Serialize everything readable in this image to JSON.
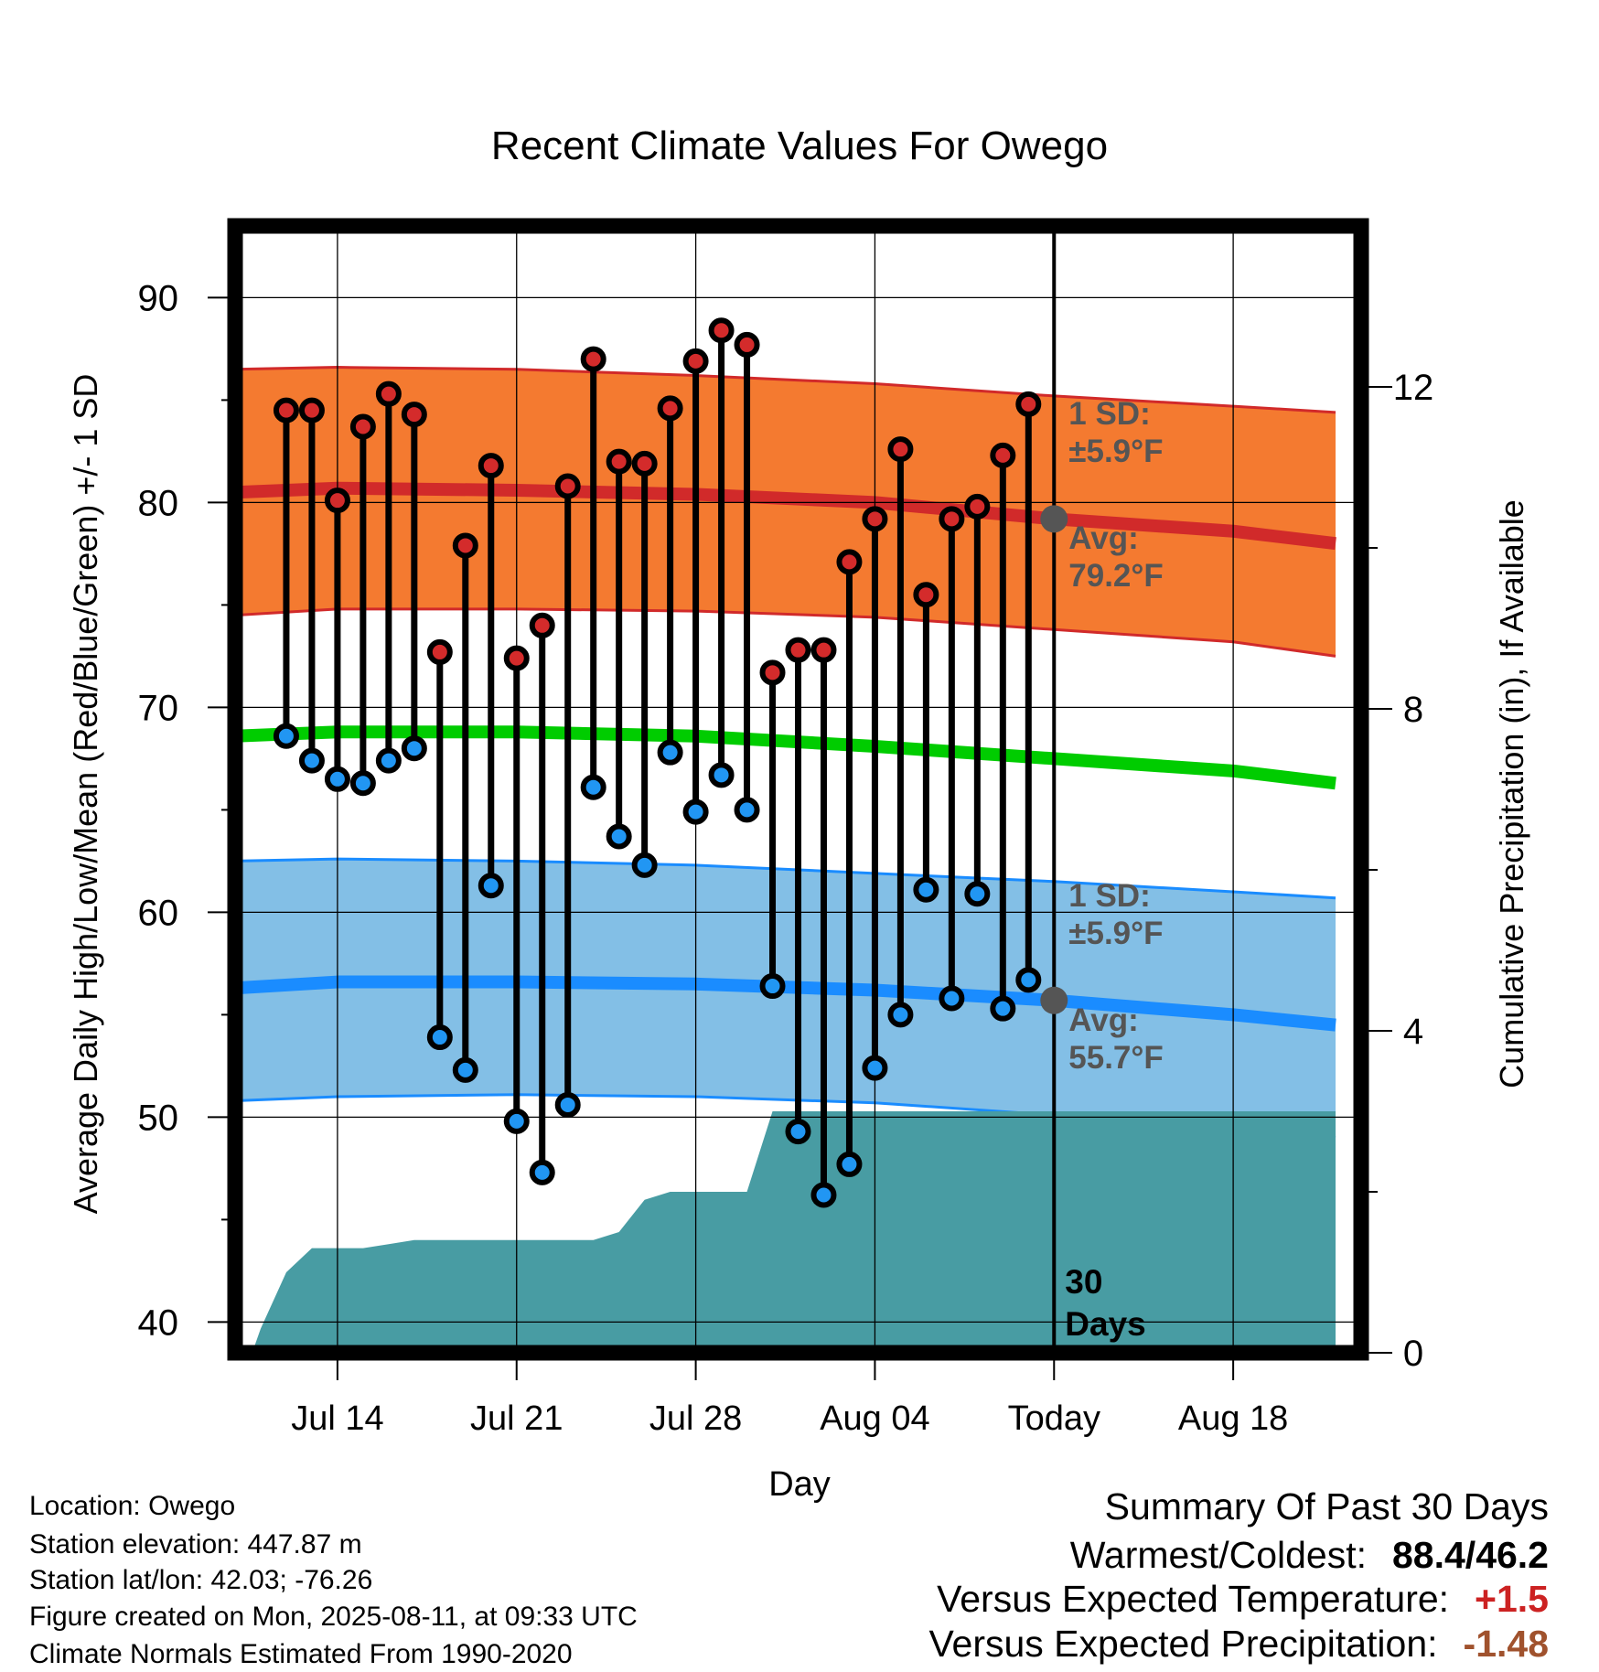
{
  "chart_data": {
    "type": "line",
    "title": "Recent Climate Values For Owego",
    "xlabel": "Day",
    "ylabel_left": "Average Daily High/Low/Mean (Red/Blue/Green) +/- 1 SD",
    "ylabel_right": "Cumulative Precipitation (in), If Available",
    "ylim_left": [
      38.5,
      93.5
    ],
    "yticks_left": [
      40,
      50,
      60,
      70,
      80,
      90
    ],
    "ylim_right": [
      0,
      14
    ],
    "yticks_right": [
      0,
      4,
      8,
      12
    ],
    "x_range": [
      "2025-07-10",
      "2025-08-23"
    ],
    "x_ticks": [
      {
        "date": "2025-07-14",
        "label": "Jul 14"
      },
      {
        "date": "2025-07-21",
        "label": "Jul 21"
      },
      {
        "date": "2025-07-28",
        "label": "Jul 28"
      },
      {
        "date": "2025-08-04",
        "label": "Aug 04"
      },
      {
        "date": "2025-08-11",
        "label": "Today"
      },
      {
        "date": "2025-08-18",
        "label": "Aug 18"
      }
    ],
    "today": "2025-08-11",
    "grid": true,
    "normal_high": {
      "x": [
        "2025-07-10",
        "2025-07-14",
        "2025-07-21",
        "2025-07-28",
        "2025-08-04",
        "2025-08-11",
        "2025-08-18",
        "2025-08-22"
      ],
      "mean": [
        80.5,
        80.7,
        80.6,
        80.4,
        80.0,
        79.2,
        78.6,
        78.0
      ],
      "upper": [
        86.5,
        86.6,
        86.5,
        86.2,
        85.8,
        85.2,
        84.7,
        84.4
      ],
      "lower": [
        74.5,
        74.8,
        74.8,
        74.7,
        74.4,
        73.8,
        73.2,
        72.5
      ]
    },
    "normal_mean": {
      "x": [
        "2025-07-10",
        "2025-07-14",
        "2025-07-21",
        "2025-07-28",
        "2025-08-04",
        "2025-08-11",
        "2025-08-18",
        "2025-08-22"
      ],
      "values": [
        68.6,
        68.8,
        68.8,
        68.6,
        68.1,
        67.5,
        66.9,
        66.3
      ]
    },
    "normal_low": {
      "x": [
        "2025-07-10",
        "2025-07-14",
        "2025-07-21",
        "2025-07-28",
        "2025-08-04",
        "2025-08-11",
        "2025-08-18",
        "2025-08-22"
      ],
      "mean": [
        56.3,
        56.6,
        56.6,
        56.5,
        56.2,
        55.7,
        55.0,
        54.5
      ],
      "upper": [
        62.5,
        62.6,
        62.5,
        62.3,
        61.9,
        61.5,
        61.0,
        60.7
      ],
      "lower": [
        50.8,
        51.0,
        51.1,
        51.0,
        50.7,
        50.1,
        49.5,
        49.0
      ]
    },
    "daily": [
      {
        "date": "2025-07-12",
        "high": 84.5,
        "low": 68.6
      },
      {
        "date": "2025-07-13",
        "high": 84.5,
        "low": 67.4
      },
      {
        "date": "2025-07-14",
        "high": 80.1,
        "low": 66.5
      },
      {
        "date": "2025-07-15",
        "high": 83.7,
        "low": 66.3
      },
      {
        "date": "2025-07-16",
        "high": 85.3,
        "low": 67.4
      },
      {
        "date": "2025-07-17",
        "high": 84.3,
        "low": 68.0
      },
      {
        "date": "2025-07-18",
        "high": 72.7,
        "low": 53.9
      },
      {
        "date": "2025-07-19",
        "high": 77.9,
        "low": 52.3
      },
      {
        "date": "2025-07-20",
        "high": 81.8,
        "low": 61.3
      },
      {
        "date": "2025-07-21",
        "high": 72.4,
        "low": 49.8
      },
      {
        "date": "2025-07-22",
        "high": 74.0,
        "low": 47.3
      },
      {
        "date": "2025-07-23",
        "high": 80.8,
        "low": 50.6
      },
      {
        "date": "2025-07-24",
        "high": 87.0,
        "low": 66.1
      },
      {
        "date": "2025-07-25",
        "high": 82.0,
        "low": 63.7
      },
      {
        "date": "2025-07-26",
        "high": 81.9,
        "low": 62.3
      },
      {
        "date": "2025-07-27",
        "high": 84.6,
        "low": 67.8
      },
      {
        "date": "2025-07-28",
        "high": 86.9,
        "low": 64.9
      },
      {
        "date": "2025-07-29",
        "high": 88.4,
        "low": 66.7
      },
      {
        "date": "2025-07-30",
        "high": 87.7,
        "low": 65.0
      },
      {
        "date": "2025-07-31",
        "high": 71.7,
        "low": 56.4
      },
      {
        "date": "2025-08-01",
        "high": 72.8,
        "low": 49.3
      },
      {
        "date": "2025-08-02",
        "high": 72.8,
        "low": 46.2
      },
      {
        "date": "2025-08-03",
        "high": 77.1,
        "low": 47.7
      },
      {
        "date": "2025-08-04",
        "high": 79.2,
        "low": 52.4
      },
      {
        "date": "2025-08-05",
        "high": 82.6,
        "low": 55.0
      },
      {
        "date": "2025-08-06",
        "high": 75.5,
        "low": 61.1
      },
      {
        "date": "2025-08-07",
        "high": 79.2,
        "low": 55.8
      },
      {
        "date": "2025-08-08",
        "high": 79.8,
        "low": 60.9
      },
      {
        "date": "2025-08-09",
        "high": 82.3,
        "low": 55.3
      },
      {
        "date": "2025-08-10",
        "high": 84.8,
        "low": 56.7
      }
    ],
    "precipitation_cumulative": {
      "x": [
        "2025-07-10",
        "2025-07-11",
        "2025-07-12",
        "2025-07-13",
        "2025-07-15",
        "2025-07-16",
        "2025-07-17",
        "2025-07-24",
        "2025-07-25",
        "2025-07-26",
        "2025-07-27",
        "2025-07-30",
        "2025-07-31",
        "2025-08-22"
      ],
      "values": [
        -0.6,
        0.3,
        1.0,
        1.3,
        1.3,
        1.35,
        1.4,
        1.4,
        1.5,
        1.9,
        2.0,
        2.0,
        3.0,
        3.0
      ]
    },
    "annotations": {
      "high_sd": "1 SD:\n±5.9°F",
      "high_avg": "Avg:\n79.2°F",
      "low_sd": "1 SD:\n±5.9°F",
      "low_avg": "Avg:\n55.7°F",
      "days": "30\nDays"
    },
    "today_marker_values": {
      "high": 79.2,
      "low": 55.7
    },
    "colors": {
      "high_band": "#f47a30",
      "high_line": "#d12a2a",
      "mean_line": "#00cc00",
      "low_band": "#83bfe6",
      "low_line": "#1a8cff",
      "precip": "#489ca3",
      "high_dot": "#d42b2b",
      "low_dot": "#2196f3",
      "annotation": "#555555"
    }
  },
  "meta": {
    "location": "Location: Owego",
    "elevation": "Station elevation: 447.87 m",
    "latlon": "Station lat/lon: 42.03; -76.26",
    "created": "Figure created on Mon, 2025-08-11, at 09:33 UTC",
    "normals": "Climate Normals Estimated From 1990-2020"
  },
  "summary": {
    "title": "Summary Of Past 30 Days",
    "warmest_label": "Warmest/Coldest:",
    "warmest_value": "88.4/46.2",
    "temp_label": "Versus Expected Temperature:",
    "temp_value": "+1.5",
    "temp_color": "#cc2222",
    "precip_label": "Versus Expected Precipitation:",
    "precip_value": "-1.48",
    "precip_color": "#a0522d"
  }
}
